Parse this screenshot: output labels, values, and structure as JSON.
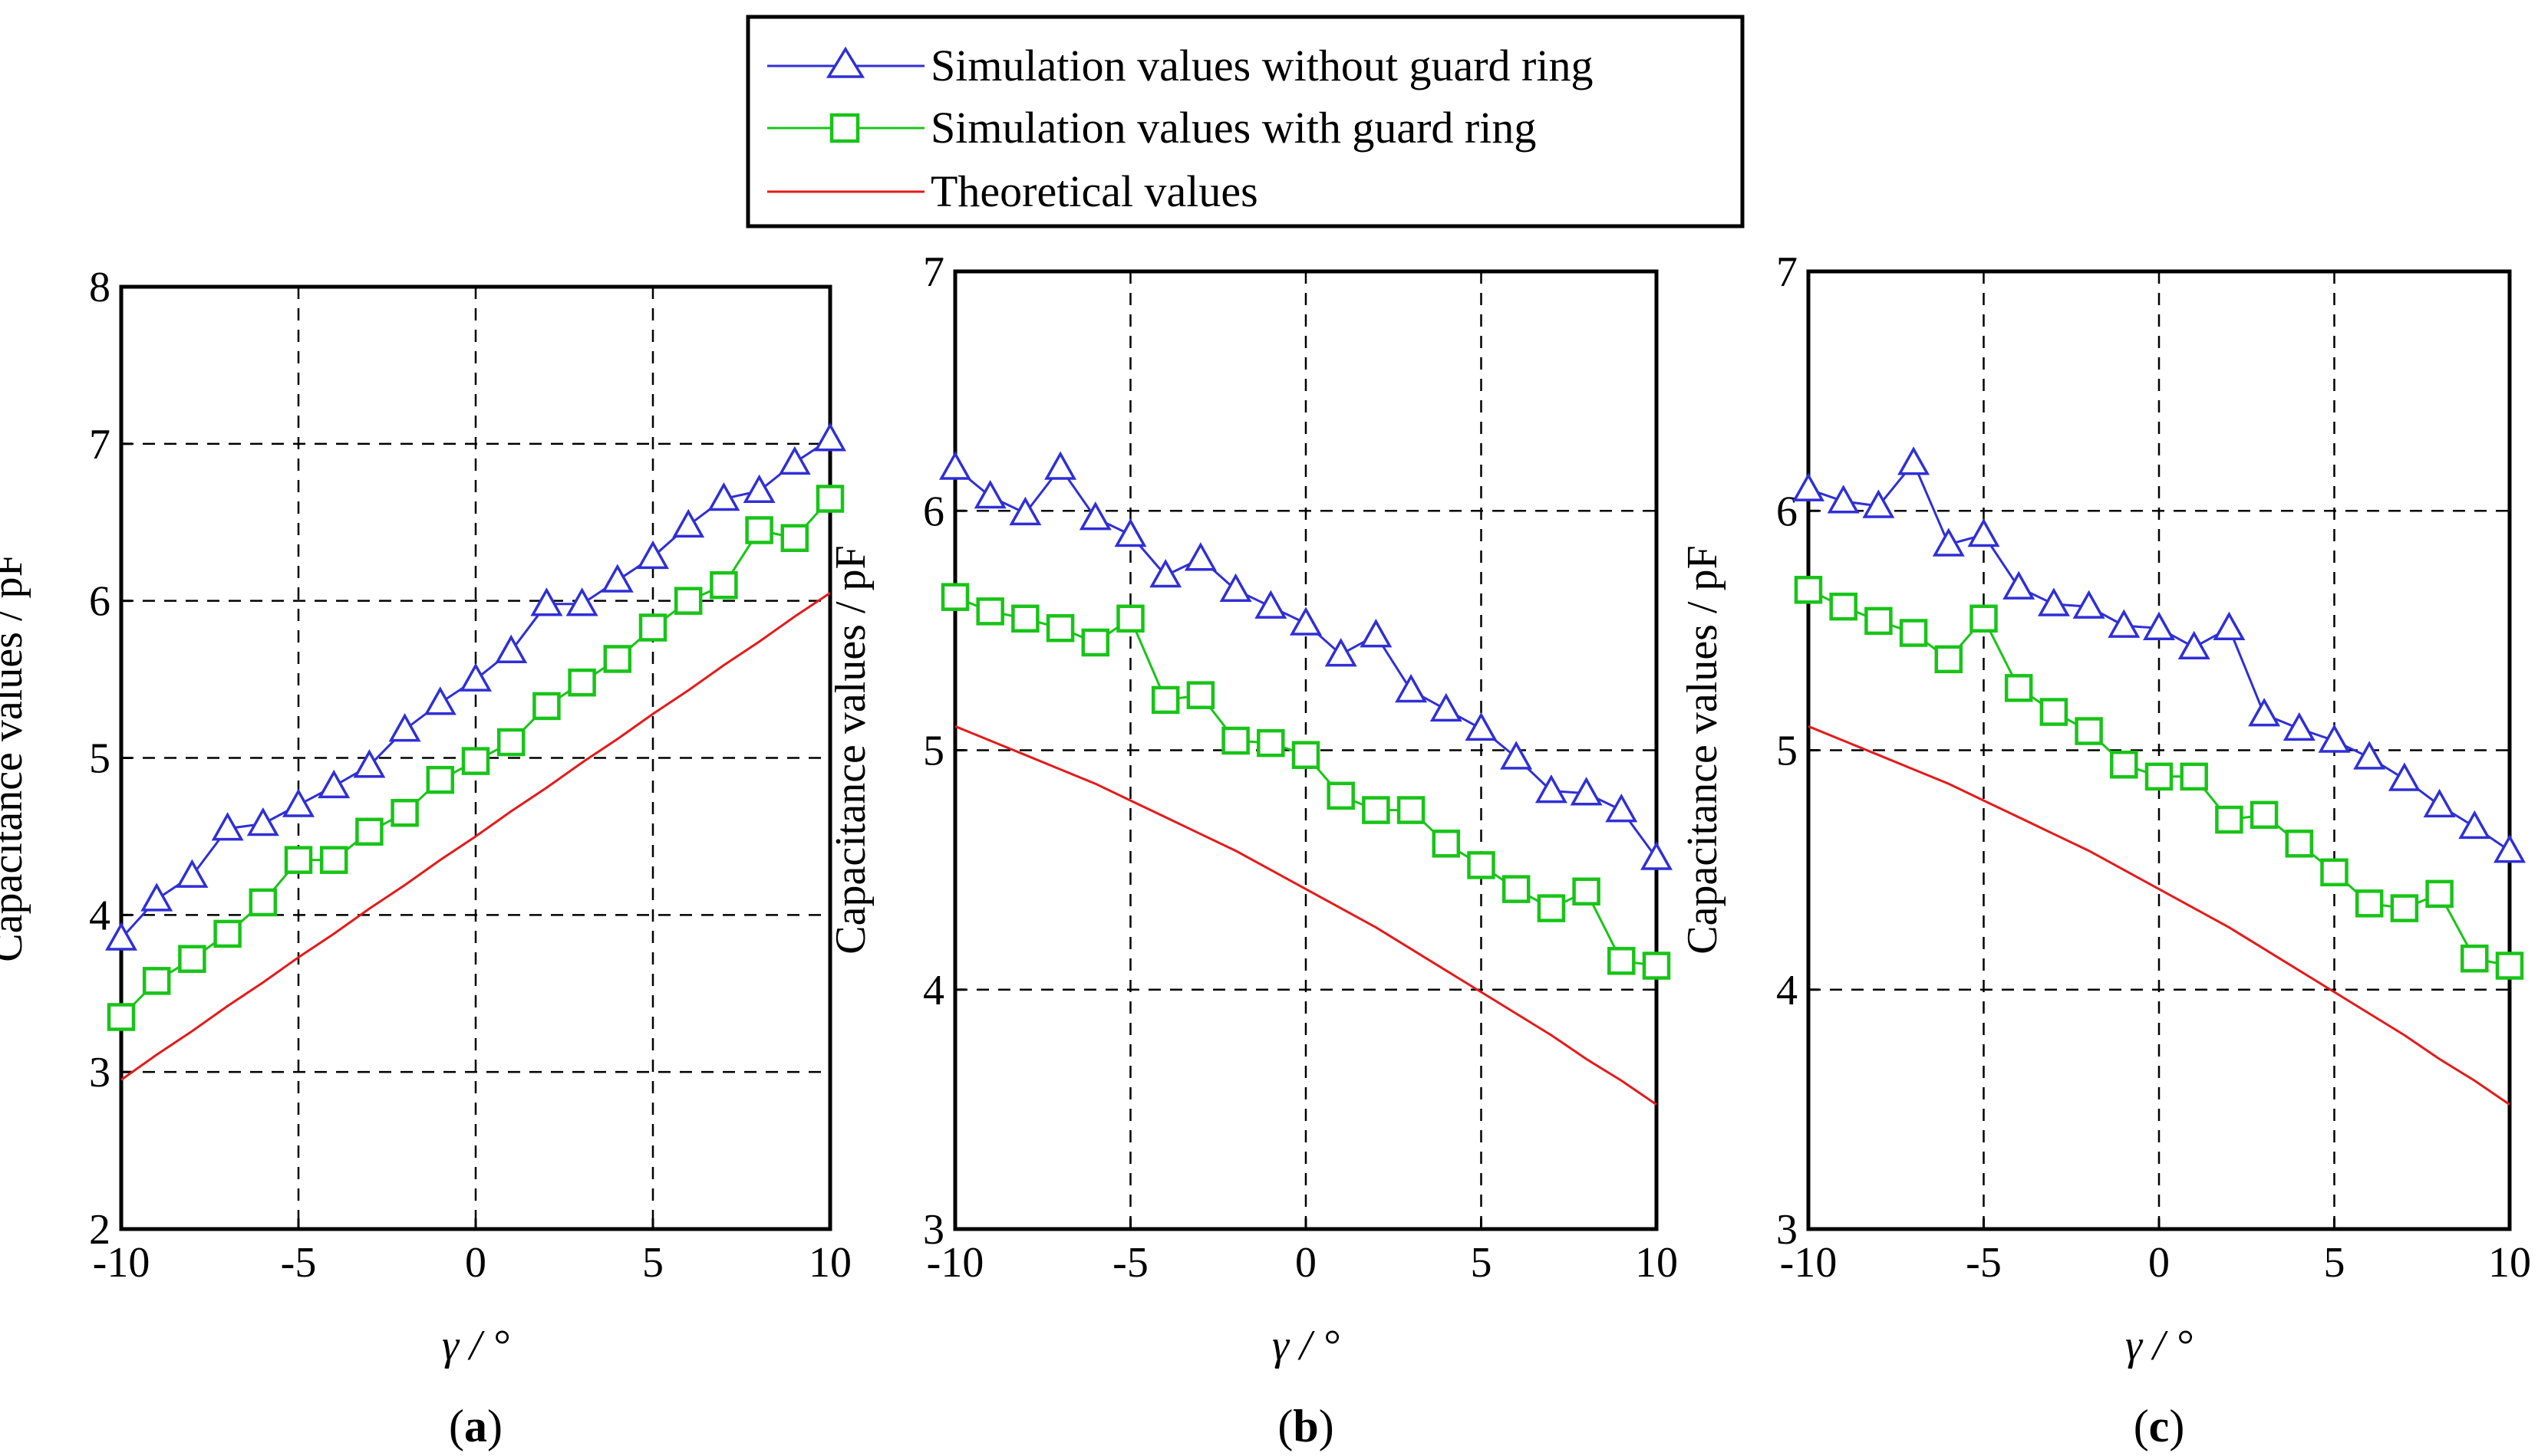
{
  "legend": {
    "items": [
      {
        "label": "Simulation values without guard ring",
        "color": "#2f2fd6",
        "marker": "triangle"
      },
      {
        "label": "Simulation values with guard ring",
        "color": "#18c418",
        "marker": "square"
      },
      {
        "label": "Theoretical values",
        "color": "#e41a1a",
        "marker": "none"
      }
    ]
  },
  "chart_data": [
    {
      "type": "line",
      "panel_label": "a",
      "xlabel": "γ / °",
      "ylabel": "Capacitance values / pF",
      "xlim": [
        -10,
        10
      ],
      "ylim": [
        2,
        8
      ],
      "xticks": [
        -10,
        -5,
        0,
        5,
        10
      ],
      "yticks": [
        2,
        3,
        4,
        5,
        6,
        7,
        8
      ],
      "grid": true,
      "x": [
        -10,
        -9,
        -8,
        -7,
        -6,
        -5,
        -4,
        -3,
        -2,
        -1,
        0,
        1,
        2,
        3,
        4,
        5,
        6,
        7,
        8,
        9,
        10
      ],
      "series": [
        {
          "name": "Simulation values without guard ring",
          "values": [
            3.85,
            4.1,
            4.25,
            4.55,
            4.58,
            4.7,
            4.82,
            4.95,
            5.18,
            5.35,
            5.5,
            5.68,
            5.98,
            5.98,
            6.13,
            6.28,
            6.48,
            6.65,
            6.7,
            6.88,
            7.03
          ]
        },
        {
          "name": "Simulation values with guard ring",
          "values": [
            3.35,
            3.58,
            3.72,
            3.88,
            4.08,
            4.35,
            4.35,
            4.53,
            4.65,
            4.86,
            4.98,
            5.1,
            5.33,
            5.48,
            5.63,
            5.83,
            6.0,
            6.1,
            6.45,
            6.4,
            6.65
          ]
        },
        {
          "name": "Theoretical values",
          "values": [
            2.95,
            3.11,
            3.26,
            3.42,
            3.57,
            3.73,
            3.88,
            4.04,
            4.19,
            4.35,
            4.5,
            4.66,
            4.81,
            4.97,
            5.12,
            5.28,
            5.43,
            5.59,
            5.74,
            5.9,
            6.05
          ]
        }
      ]
    },
    {
      "type": "line",
      "panel_label": "b",
      "xlabel": "γ / °",
      "ylabel": "Capacitance values / pF",
      "xlim": [
        -10,
        10
      ],
      "ylim": [
        3,
        7
      ],
      "xticks": [
        -10,
        -5,
        0,
        5,
        10
      ],
      "yticks": [
        3,
        4,
        5,
        6,
        7
      ],
      "grid": true,
      "x": [
        -10,
        -9,
        -8,
        -7,
        -6,
        -5,
        -4,
        -3,
        -2,
        -1,
        0,
        1,
        2,
        3,
        4,
        5,
        6,
        7,
        8,
        9,
        10
      ],
      "series": [
        {
          "name": "Simulation values without guard ring",
          "values": [
            6.18,
            6.06,
            5.99,
            6.18,
            5.97,
            5.9,
            5.73,
            5.8,
            5.67,
            5.6,
            5.53,
            5.4,
            5.48,
            5.25,
            5.17,
            5.09,
            4.97,
            4.83,
            4.82,
            4.75,
            4.55
          ]
        },
        {
          "name": "Simulation values with guard ring",
          "values": [
            5.64,
            5.58,
            5.55,
            5.51,
            5.45,
            5.55,
            5.21,
            5.23,
            5.04,
            5.03,
            4.98,
            4.81,
            4.75,
            4.75,
            4.61,
            4.52,
            4.42,
            4.34,
            4.41,
            4.12,
            4.1
          ]
        },
        {
          "name": "Theoretical values",
          "values": [
            5.1,
            5.04,
            4.98,
            4.92,
            4.86,
            4.79,
            4.72,
            4.65,
            4.58,
            4.5,
            4.42,
            4.34,
            4.26,
            4.17,
            4.08,
            3.99,
            3.9,
            3.81,
            3.71,
            3.62,
            3.52
          ]
        }
      ]
    },
    {
      "type": "line",
      "panel_label": "c",
      "xlabel": "γ / °",
      "ylabel": "Capacitance values / pF",
      "xlim": [
        -10,
        10
      ],
      "ylim": [
        3,
        7
      ],
      "xticks": [
        -10,
        -5,
        0,
        5,
        10
      ],
      "yticks": [
        3,
        4,
        5,
        6,
        7
      ],
      "grid": true,
      "x": [
        -10,
        -9,
        -8,
        -7,
        -6,
        -5,
        -4,
        -3,
        -2,
        -1,
        0,
        1,
        2,
        3,
        4,
        5,
        6,
        7,
        8,
        9,
        10
      ],
      "series": [
        {
          "name": "Simulation values without guard ring",
          "values": [
            6.09,
            6.04,
            6.02,
            6.2,
            5.86,
            5.9,
            5.68,
            5.61,
            5.6,
            5.52,
            5.51,
            5.43,
            5.51,
            5.15,
            5.09,
            5.04,
            4.97,
            4.88,
            4.77,
            4.68,
            4.58
          ]
        },
        {
          "name": "Simulation values with guard ring",
          "values": [
            5.67,
            5.6,
            5.54,
            5.49,
            5.38,
            5.55,
            5.26,
            5.16,
            5.08,
            4.94,
            4.89,
            4.89,
            4.71,
            4.73,
            4.61,
            4.49,
            4.36,
            4.34,
            4.4,
            4.13,
            4.1
          ]
        },
        {
          "name": "Theoretical values",
          "values": [
            5.1,
            5.04,
            4.98,
            4.92,
            4.86,
            4.79,
            4.72,
            4.65,
            4.58,
            4.5,
            4.42,
            4.34,
            4.26,
            4.17,
            4.08,
            3.99,
            3.9,
            3.81,
            3.71,
            3.62,
            3.52
          ]
        }
      ]
    }
  ]
}
